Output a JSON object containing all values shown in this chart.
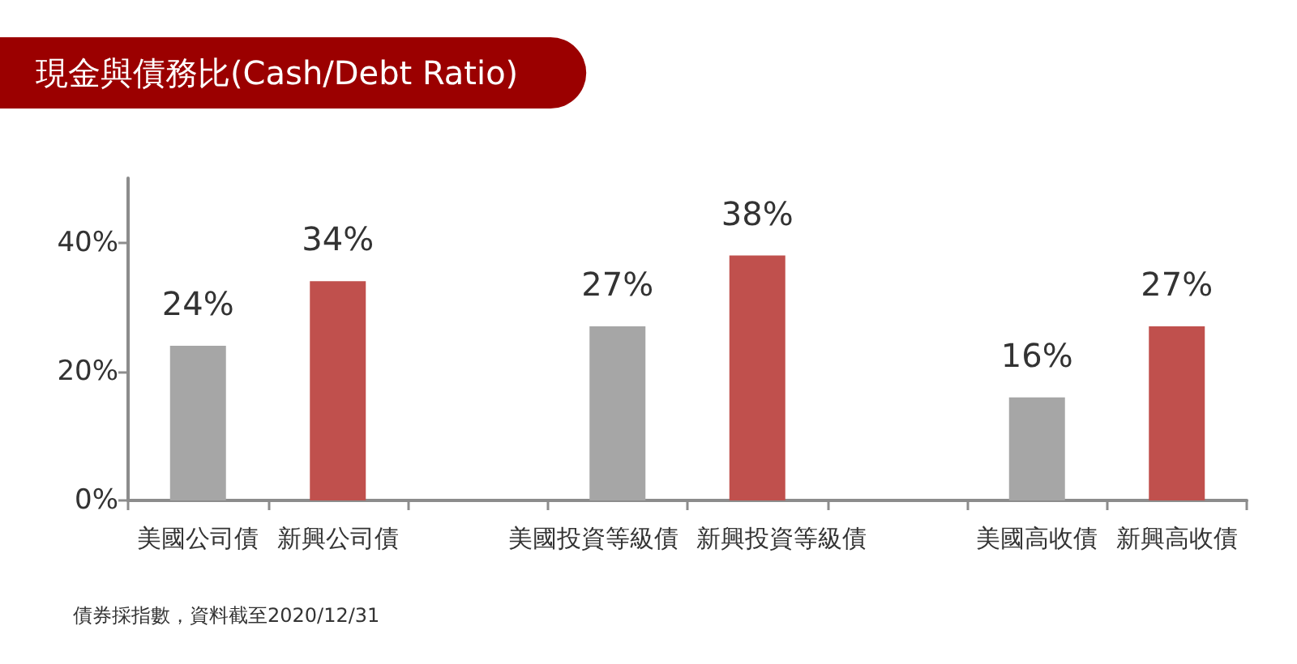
{
  "chart_data": {
    "type": "bar",
    "title": "現金與債務比(Cash/Debt Ratio)",
    "categories": [
      "美國公司債",
      "新興公司債",
      null,
      "美國投資等級債",
      "新興投資等級債",
      null,
      "美國高收債",
      "新興高收債"
    ],
    "values": [
      24,
      34,
      null,
      27,
      38,
      null,
      16,
      27
    ],
    "colors": [
      "#a6a6a6",
      "#c0504d",
      null,
      "#a6a6a6",
      "#c0504d",
      null,
      "#a6a6a6",
      "#c0504d"
    ],
    "value_labels": [
      "24%",
      "34%",
      null,
      "27%",
      "38%",
      null,
      "16%",
      "27%"
    ],
    "ylim": [
      0,
      50
    ],
    "yticks": [
      {
        "value": 0,
        "label": "0%"
      },
      {
        "value": 20,
        "label": "20%"
      },
      {
        "value": 40,
        "label": "40%"
      }
    ],
    "grid": false,
    "annotations": [
      "債券採指數，資料截至2020/12/31"
    ]
  }
}
